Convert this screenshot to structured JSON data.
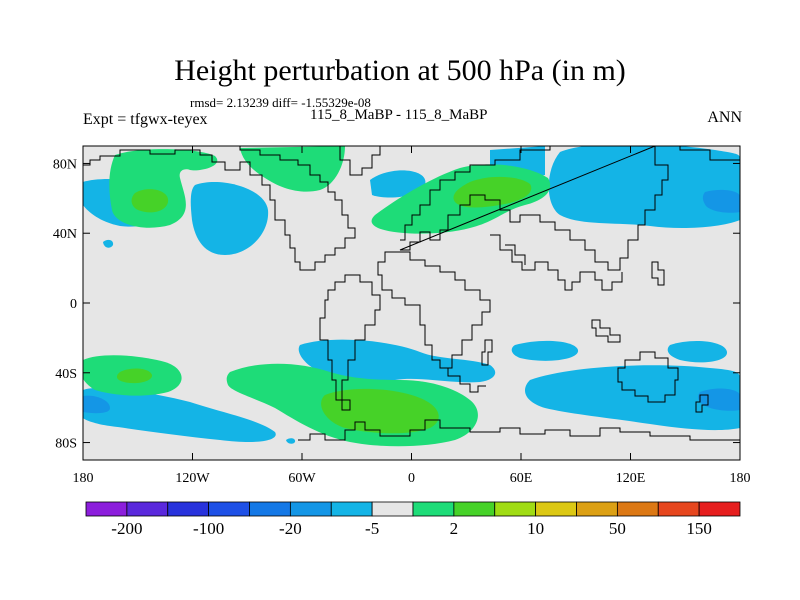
{
  "title": "Height perturbation at 500 hPa (in m)",
  "stats": "rmsd= 2.13239 diff= -1.55329e-08",
  "left_label": "Expt = tfgwx-teyex",
  "center_label": "115_8_MaBP - 115_8_MaBP",
  "right_label": "ANN",
  "map": {
    "projection": "cylindrical equidistant",
    "lon_range": [
      -180,
      180
    ],
    "lat_range": [
      -90,
      90
    ],
    "lat_ticks": [
      {
        "value": 80,
        "label": "80N"
      },
      {
        "value": 40,
        "label": "40N"
      },
      {
        "value": 0,
        "label": "0"
      },
      {
        "value": -40,
        "label": "40S"
      },
      {
        "value": -80,
        "label": "80S"
      }
    ],
    "lon_ticks": [
      {
        "value": -180,
        "label": "180"
      },
      {
        "value": -120,
        "label": "120W"
      },
      {
        "value": -60,
        "label": "60W"
      },
      {
        "value": 0,
        "label": "0"
      },
      {
        "value": 60,
        "label": "60E"
      },
      {
        "value": 120,
        "label": "120E"
      },
      {
        "value": 180,
        "label": "180"
      }
    ]
  },
  "colorbar": {
    "colors": [
      "#8c1edc",
      "#5a28dc",
      "#2832dc",
      "#1e50e6",
      "#1478e6",
      "#1496e6",
      "#14b4e6",
      "#e6e6e6",
      "#1edc78",
      "#46d228",
      "#a0dc14",
      "#dcc814",
      "#dca014",
      "#dc7814",
      "#e6461e",
      "#e61e1e"
    ],
    "labels": [
      {
        "boundary": 1,
        "text": "-200"
      },
      {
        "boundary": 3,
        "text": "-100"
      },
      {
        "boundary": 5,
        "text": "-20"
      },
      {
        "boundary": 7,
        "text": "-5"
      },
      {
        "boundary": 9,
        "text": "2"
      },
      {
        "boundary": 11,
        "text": "10"
      },
      {
        "boundary": 13,
        "text": "50"
      },
      {
        "boundary": 15,
        "text": "150"
      }
    ]
  },
  "field_colors": {
    "background": "#e6e6e6",
    "cyan": "#14b4e6",
    "light_green": "#1edc78",
    "green": "#46d228"
  }
}
